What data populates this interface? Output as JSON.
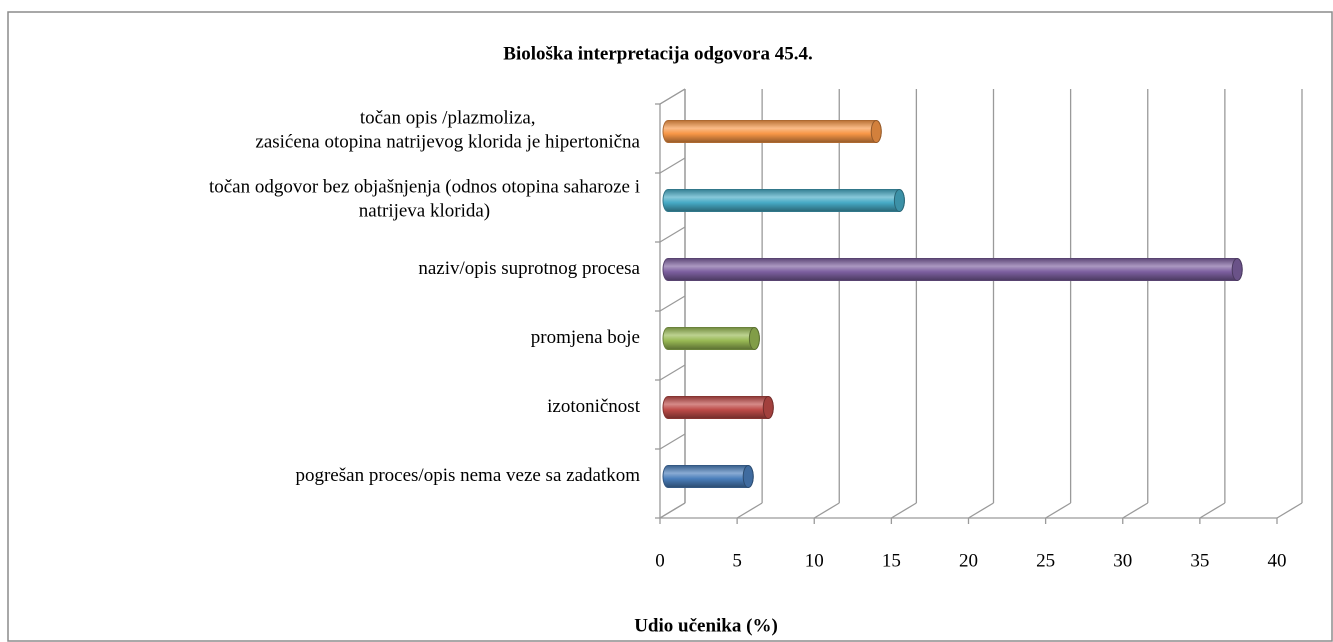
{
  "chart_data": {
    "type": "bar3d",
    "orientation": "horizontal",
    "title": "Biološka interpretacija odgovora 45.4.",
    "x_label": "Udio učenika (%)",
    "categories": [
      "pogrešan proces/opis nema veze sa zadatkom",
      "izotoničnost",
      "promjena boje",
      "naziv/opis suprotnog procesa",
      "točan odgovor bez objašnjenja (odnos otopina saharoze i\nnatrijeva klorida)",
      "točan opis /plazmoliza,\nzasićena otopina natrijevog klorida je hipertonična"
    ],
    "values": [
      5.2,
      6.5,
      5.6,
      36.9,
      15.0,
      13.5
    ],
    "colors": [
      "#4a7ebb",
      "#be4b48",
      "#98b954",
      "#7d60a0",
      "#46aac5",
      "#f79646"
    ],
    "xlim": [
      0,
      40
    ],
    "xticks": [
      0,
      5,
      10,
      15,
      20,
      25,
      30,
      35,
      40
    ],
    "grid": true
  }
}
